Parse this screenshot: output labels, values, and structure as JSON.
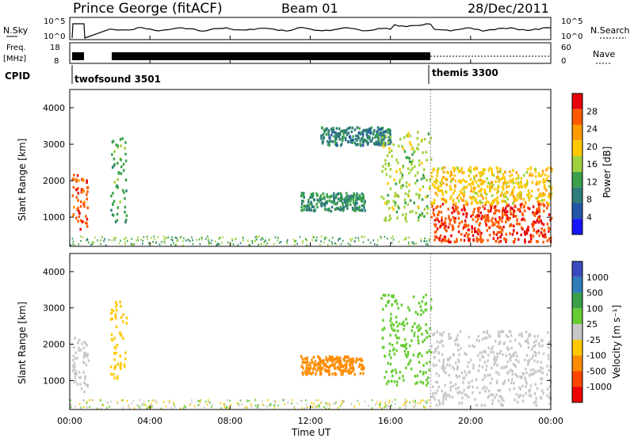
{
  "header": {
    "station": "Prince George (fitACF)",
    "beam": "Beam 01",
    "date": "28/Dec/2011"
  },
  "top_panels": {
    "nsky_label": "N.Sky",
    "nsky_ticks": [
      "10^5",
      "10^0"
    ],
    "nsearch_label": "N.Search",
    "freq_label_1": "Freq.",
    "freq_label_2": "[MHz]",
    "freq_ticks": [
      "18",
      "8"
    ],
    "nave_ticks": [
      "60",
      "0"
    ],
    "nave_label": "Nave",
    "cpid_label": "CPID",
    "cpid_entries": [
      "twofsound 3501",
      "themis 3300"
    ]
  },
  "power_panel": {
    "ylabel": "Slant Range [km]",
    "colorbar_label": "Power [dB]",
    "colorbar_ticks": [
      "28",
      "24",
      "20",
      "16",
      "12",
      "8",
      "4"
    ],
    "colors": [
      "#e8000b",
      "#ff5a00",
      "#ff9a00",
      "#ffc800",
      "#9fd23c",
      "#3aa14a",
      "#2e7d7a",
      "#2255a8",
      "#1515ff"
    ]
  },
  "velocity_panel": {
    "ylabel": "Slant Range [km]",
    "colorbar_label": "Velocity [m s⁻¹]",
    "colorbar_ticks": [
      "1000",
      "500",
      "100",
      "25",
      "-25",
      "-100",
      "-500",
      "-1000"
    ],
    "colors": [
      "#3b4cc0",
      "#2e7db8",
      "#3aa14a",
      "#66cc33",
      "#c8c8c8",
      "#ffc800",
      "#ff8c00",
      "#ff4500",
      "#ee0000"
    ]
  },
  "xaxis": {
    "label": "Time UT",
    "ticks": [
      "00:00",
      "04:00",
      "08:00",
      "12:00",
      "16:00",
      "20:00",
      "00:00"
    ]
  },
  "chart_data": {
    "type": "heatmap",
    "x_range_hours": [
      0,
      24
    ],
    "y_range_km": [
      200,
      4500
    ],
    "y_ticks": [
      1000,
      2000,
      3000,
      4000
    ],
    "cpid_change_hour": 18.0,
    "power_regions": [
      {
        "t0": 0.1,
        "t1": 0.9,
        "r0": 700,
        "r1": 2200,
        "db": 26
      },
      {
        "t0": 2.0,
        "t1": 2.8,
        "r0": 900,
        "r1": 3300,
        "db": 10
      },
      {
        "t0": 11.5,
        "t1": 14.7,
        "r0": 1200,
        "r1": 1700,
        "db": 8
      },
      {
        "t0": 12.5,
        "t1": 16.0,
        "r0": 3000,
        "r1": 3500,
        "db": 6
      },
      {
        "t0": 15.5,
        "t1": 18.0,
        "r0": 900,
        "r1": 3400,
        "db": 14
      },
      {
        "t0": 18.0,
        "t1": 24.0,
        "r0": 350,
        "r1": 1400,
        "db": 27
      },
      {
        "t0": 18.0,
        "t1": 24.0,
        "r0": 1400,
        "r1": 2400,
        "db": 18
      }
    ],
    "velocity_regions": [
      {
        "t0": 0.1,
        "t1": 0.9,
        "r0": 700,
        "r1": 2200,
        "v": 0
      },
      {
        "t0": 2.0,
        "t1": 2.8,
        "r0": 900,
        "r1": 3300,
        "v": -80
      },
      {
        "t0": 11.5,
        "t1": 14.7,
        "r0": 1200,
        "r1": 1700,
        "v": -150
      },
      {
        "t0": 15.5,
        "t1": 18.0,
        "r0": 900,
        "r1": 3400,
        "v": 60
      },
      {
        "t0": 18.0,
        "t1": 24.0,
        "r0": 350,
        "r1": 2400,
        "v": 0
      }
    ]
  }
}
